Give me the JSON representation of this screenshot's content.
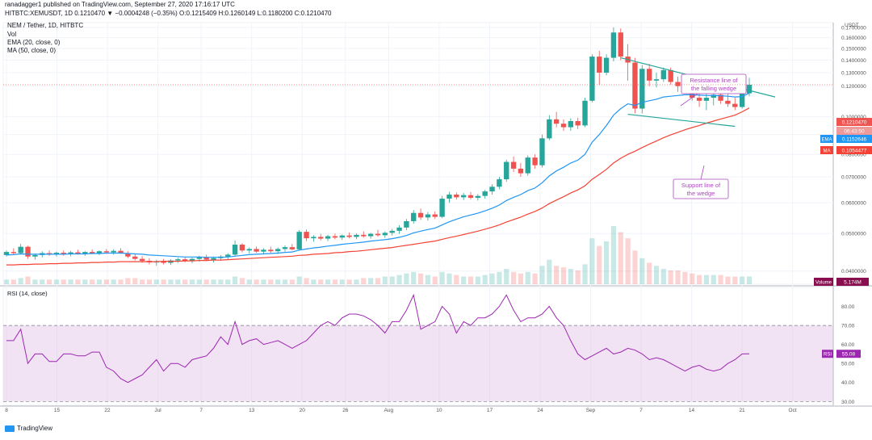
{
  "header": {
    "publish_line": "ranadagger1 published on TradingView.com, September 27, 2020 17:16:17 UTC",
    "symbol_line": "HITBTC:XEMUSDT, 1D 0.1210470 ▼ −0.0004248 (−0.35%) O:0.1215409 H:0.1260149 L:0.1180200 C:0.1210470",
    "pair_line": "NEM / Tether, 1D, HITBTC",
    "vol_label": "Vol",
    "ema_label": "EMA (20, close, 0)",
    "ma_label": "MA (50, close, 0)"
  },
  "footer": {
    "brand": "TradingView"
  },
  "colors": {
    "up": "#26a69a",
    "down": "#ef5350",
    "ema": "#2196f3",
    "ma": "#f44336",
    "wedge": "#26a69a",
    "rsi_line": "#9c27b0",
    "rsi_band": "#e1bee7",
    "annotation": "#ab47bc",
    "volume_tag": "#880e4f",
    "axis_text": "#555555",
    "grid": "#f0f3fa"
  },
  "chart_data": [
    {
      "type": "candlestick",
      "pane": "price",
      "x_axis_ticks": [
        "8",
        "15",
        "22",
        "Jul",
        "7",
        "13",
        "20",
        "26",
        "Aug",
        "10",
        "17",
        "24",
        "Sep",
        "7",
        "14",
        "21",
        "Oct"
      ],
      "y_axis_ticks": [
        "0.1700000",
        "0.1600000",
        "0.1500000",
        "0.1400000",
        "0.1300000",
        "0.1200000",
        "0.1000000",
        "0.0900000",
        "0.0800000",
        "0.0700000",
        "0.0600000",
        "0.0500000",
        "0.0400000"
      ],
      "y_axis_unit": "USDT",
      "log_scale": true,
      "ylim": [
        0.037,
        0.175
      ],
      "price_tags": [
        {
          "label": "",
          "value": "0.1210470"
        },
        {
          "label": "",
          "value": "06:43:50"
        },
        {
          "label": "EMA",
          "value": "0.1152646"
        },
        {
          "label": "MA",
          "value": "0.1054477"
        }
      ],
      "candles": [
        [
          0.044,
          0.0452,
          0.0436,
          0.0448
        ],
        [
          0.0448,
          0.0458,
          0.044,
          0.0445
        ],
        [
          0.0445,
          0.047,
          0.0442,
          0.0462
        ],
        [
          0.0462,
          0.0465,
          0.043,
          0.0436
        ],
        [
          0.0436,
          0.0444,
          0.0428,
          0.044
        ],
        [
          0.044,
          0.045,
          0.0434,
          0.0445
        ],
        [
          0.0445,
          0.0452,
          0.0438,
          0.0441
        ],
        [
          0.0441,
          0.0449,
          0.0436,
          0.0446
        ],
        [
          0.0446,
          0.0452,
          0.0438,
          0.0443
        ],
        [
          0.0443,
          0.0451,
          0.0437,
          0.0447
        ],
        [
          0.0447,
          0.0454,
          0.0441,
          0.0444
        ],
        [
          0.0444,
          0.045,
          0.0438,
          0.0448
        ],
        [
          0.0448,
          0.0455,
          0.0442,
          0.0445
        ],
        [
          0.0445,
          0.0452,
          0.044,
          0.045
        ],
        [
          0.045,
          0.0456,
          0.0443,
          0.0447
        ],
        [
          0.0447,
          0.0455,
          0.0441,
          0.0451
        ],
        [
          0.0451,
          0.0458,
          0.0443,
          0.0445
        ],
        [
          0.0445,
          0.045,
          0.0432,
          0.0436
        ],
        [
          0.0436,
          0.0442,
          0.0426,
          0.043
        ],
        [
          0.043,
          0.0437,
          0.042,
          0.0425
        ],
        [
          0.0425,
          0.0432,
          0.0416,
          0.0421
        ],
        [
          0.0421,
          0.0428,
          0.0413,
          0.0424
        ],
        [
          0.0424,
          0.043,
          0.0416,
          0.042
        ],
        [
          0.042,
          0.0429,
          0.0415,
          0.0426
        ],
        [
          0.0426,
          0.0433,
          0.042,
          0.0429
        ],
        [
          0.0429,
          0.0435,
          0.0421,
          0.0425
        ],
        [
          0.0425,
          0.0433,
          0.0419,
          0.043
        ],
        [
          0.043,
          0.0438,
          0.0423,
          0.0434
        ],
        [
          0.0434,
          0.0441,
          0.0425,
          0.0428
        ],
        [
          0.0428,
          0.0436,
          0.0421,
          0.0432
        ],
        [
          0.0432,
          0.044,
          0.0425,
          0.0436
        ],
        [
          0.0436,
          0.0445,
          0.0428,
          0.0441
        ],
        [
          0.0441,
          0.048,
          0.0438,
          0.0468
        ],
        [
          0.0468,
          0.0472,
          0.0447,
          0.0452
        ],
        [
          0.0452,
          0.046,
          0.0444,
          0.0456
        ],
        [
          0.0456,
          0.0463,
          0.0446,
          0.0449
        ],
        [
          0.0449,
          0.0458,
          0.0443,
          0.0454
        ],
        [
          0.0454,
          0.0462,
          0.0446,
          0.045
        ],
        [
          0.045,
          0.046,
          0.0443,
          0.0456
        ],
        [
          0.0456,
          0.0466,
          0.0449,
          0.0461
        ],
        [
          0.0461,
          0.047,
          0.0452,
          0.0455
        ],
        [
          0.0455,
          0.051,
          0.0452,
          0.0505
        ],
        [
          0.0505,
          0.0512,
          0.0478,
          0.0486
        ],
        [
          0.0486,
          0.0495,
          0.0476,
          0.049
        ],
        [
          0.049,
          0.0499,
          0.048,
          0.0485
        ],
        [
          0.0485,
          0.0496,
          0.0478,
          0.0492
        ],
        [
          0.0492,
          0.05,
          0.0483,
          0.0488
        ],
        [
          0.0488,
          0.0497,
          0.0481,
          0.0494
        ],
        [
          0.0494,
          0.0503,
          0.0486,
          0.049
        ],
        [
          0.049,
          0.05,
          0.0483,
          0.0496
        ],
        [
          0.0496,
          0.0506,
          0.0488,
          0.0492
        ],
        [
          0.0492,
          0.0502,
          0.0485,
          0.0499
        ],
        [
          0.0499,
          0.0511,
          0.049,
          0.0495
        ],
        [
          0.0495,
          0.0506,
          0.0487,
          0.0502
        ],
        [
          0.0502,
          0.0514,
          0.0494,
          0.0508
        ],
        [
          0.0508,
          0.0525,
          0.0499,
          0.0518
        ],
        [
          0.0518,
          0.0545,
          0.051,
          0.0538
        ],
        [
          0.0538,
          0.0575,
          0.053,
          0.0565
        ],
        [
          0.0565,
          0.058,
          0.0542,
          0.055
        ],
        [
          0.055,
          0.0568,
          0.054,
          0.056
        ],
        [
          0.056,
          0.057,
          0.0545,
          0.0552
        ],
        [
          0.0552,
          0.0625,
          0.0548,
          0.0615
        ],
        [
          0.0615,
          0.064,
          0.06,
          0.063
        ],
        [
          0.063,
          0.0638,
          0.0612,
          0.062
        ],
        [
          0.062,
          0.0636,
          0.061,
          0.0628
        ],
        [
          0.0628,
          0.064,
          0.0612,
          0.0618
        ],
        [
          0.0618,
          0.0632,
          0.0608,
          0.0625
        ],
        [
          0.0625,
          0.0648,
          0.0615,
          0.0642
        ],
        [
          0.0642,
          0.067,
          0.063,
          0.066
        ],
        [
          0.066,
          0.07,
          0.065,
          0.069
        ],
        [
          0.069,
          0.0775,
          0.068,
          0.0765
        ],
        [
          0.0765,
          0.079,
          0.072,
          0.0735
        ],
        [
          0.0735,
          0.076,
          0.07,
          0.0715
        ],
        [
          0.0715,
          0.0795,
          0.0705,
          0.0785
        ],
        [
          0.0785,
          0.08,
          0.0735,
          0.075
        ],
        [
          0.075,
          0.09,
          0.074,
          0.088
        ],
        [
          0.088,
          0.101,
          0.087,
          0.0985
        ],
        [
          0.0985,
          0.103,
          0.094,
          0.096
        ],
        [
          0.096,
          0.0985,
          0.092,
          0.094
        ],
        [
          0.094,
          0.099,
          0.092,
          0.0975
        ],
        [
          0.0975,
          0.0995,
          0.093,
          0.095
        ],
        [
          0.095,
          0.112,
          0.094,
          0.11
        ],
        [
          0.11,
          0.145,
          0.109,
          0.143
        ],
        [
          0.143,
          0.148,
          0.121,
          0.13
        ],
        [
          0.13,
          0.145,
          0.128,
          0.142
        ],
        [
          0.142,
          0.17,
          0.139,
          0.165
        ],
        [
          0.165,
          0.169,
          0.14,
          0.143
        ],
        [
          0.143,
          0.154,
          0.124,
          0.138
        ],
        [
          0.138,
          0.142,
          0.102,
          0.105
        ],
        [
          0.105,
          0.136,
          0.102,
          0.133
        ],
        [
          0.133,
          0.137,
          0.12,
          0.124
        ],
        [
          0.124,
          0.13,
          0.119,
          0.125
        ],
        [
          0.125,
          0.134,
          0.123,
          0.132
        ],
        [
          0.132,
          0.134,
          0.121,
          0.123
        ],
        [
          0.123,
          0.127,
          0.116,
          0.12
        ],
        [
          0.12,
          0.126,
          0.116,
          0.119
        ],
        [
          0.119,
          0.124,
          0.11,
          0.112
        ],
        [
          0.112,
          0.118,
          0.106,
          0.11
        ],
        [
          0.11,
          0.115,
          0.104,
          0.112
        ],
        [
          0.112,
          0.119,
          0.107,
          0.114
        ],
        [
          0.114,
          0.117,
          0.108,
          0.11
        ],
        [
          0.11,
          0.116,
          0.106,
          0.108
        ],
        [
          0.108,
          0.112,
          0.104,
          0.106
        ],
        [
          0.106,
          0.117,
          0.105,
          0.115
        ],
        [
          0.115,
          0.126,
          0.113,
          0.121
        ]
      ]
    },
    {
      "type": "line",
      "pane": "price",
      "series": [
        {
          "name": "EMA (20, close, 0)",
          "values": [
            0.044,
            0.0441,
            0.0443,
            0.0442,
            0.0442,
            0.0442,
            0.0442,
            0.0442,
            0.0442,
            0.0443,
            0.0443,
            0.0443,
            0.0444,
            0.0444,
            0.0445,
            0.0445,
            0.0445,
            0.0444,
            0.0443,
            0.0442,
            0.044,
            0.0439,
            0.0438,
            0.0437,
            0.0436,
            0.0435,
            0.0435,
            0.0435,
            0.0434,
            0.0434,
            0.0434,
            0.0435,
            0.0437,
            0.0439,
            0.0441,
            0.0442,
            0.0443,
            0.0444,
            0.0445,
            0.0447,
            0.0448,
            0.0453,
            0.0456,
            0.0459,
            0.0461,
            0.0464,
            0.0466,
            0.0469,
            0.0471,
            0.0473,
            0.0475,
            0.0478,
            0.048,
            0.0482,
            0.0485,
            0.0489,
            0.0494,
            0.0502,
            0.0507,
            0.0512,
            0.0516,
            0.0526,
            0.0536,
            0.0544,
            0.0552,
            0.0558,
            0.0564,
            0.0572,
            0.0581,
            0.0592,
            0.0608,
            0.062,
            0.063,
            0.0645,
            0.0655,
            0.0676,
            0.0704,
            0.0725,
            0.0741,
            0.076,
            0.0773,
            0.08,
            0.086,
            0.09,
            0.095,
            0.101,
            0.105,
            0.108,
            0.107,
            0.109,
            0.11,
            0.111,
            0.1125,
            0.113,
            0.1135,
            0.114,
            0.114,
            0.1137,
            0.1135,
            0.1135,
            0.1133,
            0.113,
            0.1125,
            0.1128,
            0.1152
          ]
        },
        {
          "name": "MA (50, close, 0)",
          "values": [
            0.0415,
            0.0415,
            0.0416,
            0.0416,
            0.0417,
            0.0417,
            0.0418,
            0.0418,
            0.0419,
            0.0419,
            0.042,
            0.042,
            0.0421,
            0.0421,
            0.0422,
            0.0422,
            0.0423,
            0.0423,
            0.0423,
            0.0423,
            0.0423,
            0.0423,
            0.0424,
            0.0424,
            0.0424,
            0.0425,
            0.0425,
            0.0426,
            0.0426,
            0.0427,
            0.0427,
            0.0428,
            0.0429,
            0.043,
            0.0431,
            0.0432,
            0.0433,
            0.0434,
            0.0435,
            0.0436,
            0.0437,
            0.0439,
            0.044,
            0.0442,
            0.0443,
            0.0444,
            0.0446,
            0.0447,
            0.0449,
            0.045,
            0.0452,
            0.0454,
            0.0456,
            0.0458,
            0.046,
            0.0463,
            0.0466,
            0.0469,
            0.0472,
            0.0475,
            0.0478,
            0.0483,
            0.0488,
            0.0492,
            0.0497,
            0.0502,
            0.0507,
            0.0513,
            0.0519,
            0.0526,
            0.0535,
            0.0543,
            0.0551,
            0.0561,
            0.057,
            0.0582,
            0.0597,
            0.061,
            0.0622,
            0.0636,
            0.0648,
            0.0664,
            0.069,
            0.071,
            0.0732,
            0.076,
            0.0782,
            0.08,
            0.0815,
            0.0833,
            0.085,
            0.0866,
            0.0883,
            0.0898,
            0.0912,
            0.0926,
            0.0938,
            0.095,
            0.0963,
            0.0975,
            0.0987,
            0.0998,
            0.101,
            0.103,
            0.1054
          ]
        }
      ]
    },
    {
      "type": "bar",
      "pane": "volume",
      "series_label": "Volume",
      "value_tag": "5.174M",
      "values": [
        3,
        3,
        4,
        5,
        3,
        3,
        3,
        3,
        3,
        3,
        3,
        3,
        3,
        3,
        3,
        3,
        3,
        4,
        4,
        3,
        3,
        3,
        3,
        3,
        3,
        3,
        3,
        3,
        3,
        3,
        3,
        3,
        5,
        4,
        3,
        3,
        3,
        3,
        3,
        3,
        3,
        5,
        4,
        3,
        3,
        3,
        3,
        3,
        3,
        3,
        4,
        4,
        4,
        5,
        5,
        6,
        7,
        8,
        7,
        6,
        5,
        8,
        7,
        6,
        5,
        5,
        5,
        6,
        7,
        8,
        10,
        8,
        7,
        8,
        7,
        12,
        16,
        12,
        11,
        10,
        9,
        13,
        30,
        25,
        28,
        38,
        34,
        30,
        22,
        17,
        14,
        12,
        10,
        9,
        9,
        8,
        7,
        6,
        6,
        6,
        6,
        5,
        5,
        5,
        5
      ]
    },
    {
      "type": "line",
      "pane": "rsi",
      "series": [
        {
          "name": "RSI (14, close)",
          "values": [
            62,
            62,
            68,
            50,
            55,
            55,
            51,
            51,
            55,
            55,
            54,
            54,
            56,
            56,
            48,
            46,
            42,
            40,
            42,
            44,
            48,
            52,
            46,
            50,
            50,
            48,
            52,
            53,
            54,
            58,
            64,
            60,
            72,
            60,
            62,
            63,
            60,
            61,
            62,
            60,
            58,
            60,
            62,
            66,
            70,
            72,
            70,
            74,
            76,
            76,
            75,
            73,
            70,
            66,
            72,
            72,
            78,
            86,
            68,
            70,
            72,
            80,
            76,
            66,
            72,
            70,
            74,
            74,
            76,
            80,
            86,
            78,
            72,
            74,
            74,
            76,
            80,
            74,
            70,
            62,
            55,
            52,
            54,
            56,
            58,
            55,
            56,
            58,
            57,
            55,
            52,
            53,
            52,
            50,
            48,
            46,
            48,
            49,
            47,
            46,
            47,
            50,
            52,
            55,
            55.08
          ]
        }
      ],
      "x_axis_ticks": [
        "8",
        "15",
        "22",
        "Jul",
        "7",
        "13",
        "20",
        "26",
        "Aug",
        "10",
        "17",
        "24",
        "Sep",
        "7",
        "14",
        "21",
        "Oct"
      ],
      "y_axis_ticks": [
        "80.00",
        "70.00",
        "60.00",
        "50.00",
        "40.00",
        "30.00"
      ],
      "ylim": [
        28,
        90
      ],
      "band": [
        30,
        70
      ],
      "value_tag": {
        "label": "RSI",
        "value": "55.08"
      },
      "title": "RSI (14, close)"
    }
  ],
  "annotations": {
    "resistance_label_1": "Resistance line of",
    "resistance_label_2": "the falling wedge",
    "support_label_1": "Support line of",
    "support_label_2": "the wedge"
  }
}
